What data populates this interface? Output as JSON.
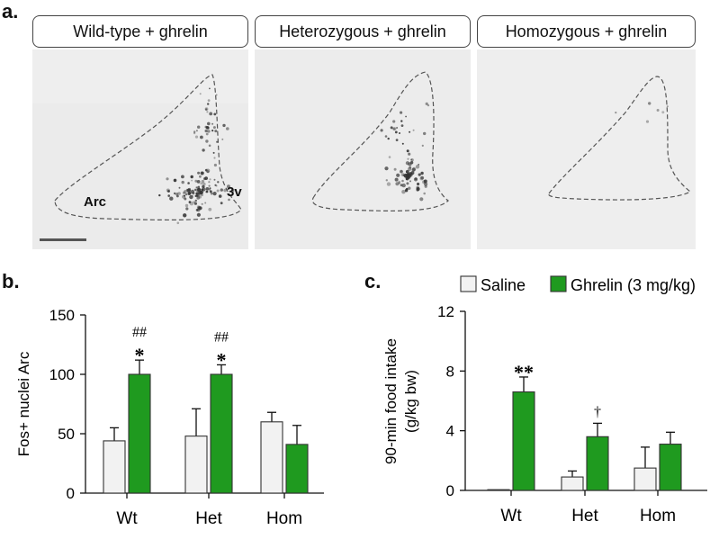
{
  "panel_a": {
    "letter": "a.",
    "labels": [
      "Wild-type + ghrelin",
      "Heterozygous + ghrelin",
      "Homozygous + ghrelin"
    ],
    "annotations": {
      "arc": "Arc",
      "third_ventricle": "3v"
    }
  },
  "chart_data": [
    {
      "type": "bar",
      "panel": "b.",
      "ylabel": "Fos+ nuclei Arc",
      "categories": [
        "Wt",
        "Het",
        "Hom"
      ],
      "ylim": [
        0,
        150
      ],
      "yticks": [
        0,
        50,
        100,
        150
      ],
      "series": [
        {
          "name": "Saline",
          "color": "#f2f2f2",
          "values": [
            44,
            48,
            60
          ],
          "errors": [
            11,
            23,
            8
          ]
        },
        {
          "name": "Ghrelin (3 mg/kg)",
          "color": "#1f9a1f",
          "values": [
            100,
            100,
            41
          ],
          "errors": [
            12,
            8,
            16
          ]
        }
      ],
      "annotations": [
        {
          "category": "Wt",
          "series": 1,
          "lines": [
            "##",
            "*"
          ]
        },
        {
          "category": "Het",
          "series": 1,
          "lines": [
            "##",
            "*"
          ]
        }
      ]
    },
    {
      "type": "bar",
      "panel": "c.",
      "ylabel_lines": [
        "90-min food intake",
        "(g/kg bw)"
      ],
      "categories": [
        "Wt",
        "Het",
        "Hom"
      ],
      "ylim": [
        0,
        12
      ],
      "yticks": [
        0,
        4,
        8,
        12
      ],
      "legend": [
        "Saline",
        "Ghrelin (3 mg/kg)"
      ],
      "series": [
        {
          "name": "Saline",
          "color": "#f2f2f2",
          "values": [
            0.05,
            0.9,
            1.5
          ],
          "errors": [
            0,
            0.4,
            1.4
          ]
        },
        {
          "name": "Ghrelin (3 mg/kg)",
          "color": "#1f9a1f",
          "values": [
            6.6,
            3.6,
            3.1
          ],
          "errors": [
            1.0,
            0.9,
            0.8
          ]
        }
      ],
      "annotations": [
        {
          "category": "Wt",
          "series": 1,
          "lines": [
            "**"
          ]
        },
        {
          "category": "Het",
          "series": 1,
          "lines": [
            "†"
          ]
        }
      ]
    }
  ]
}
